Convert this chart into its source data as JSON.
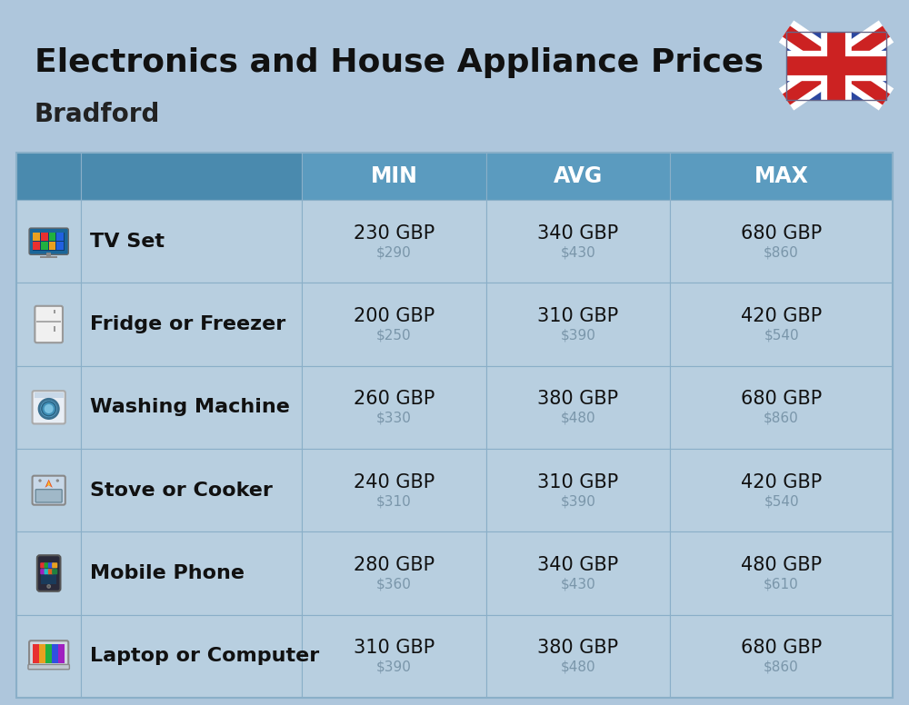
{
  "title": "Electronics and House Appliance Prices",
  "subtitle": "Bradford",
  "bg_color": "#aec6dc",
  "header_color": "#5b9bbf",
  "header_dark_color": "#4a8aae",
  "header_text_color": "#ffffff",
  "row_color": "#b8cfe0",
  "row_color_alt": "#bed4e4",
  "border_color": "#8aafc8",
  "columns": [
    "",
    "",
    "MIN",
    "AVG",
    "MAX"
  ],
  "rows": [
    {
      "name": "TV Set",
      "min_gbp": "230 GBP",
      "min_usd": "$290",
      "avg_gbp": "340 GBP",
      "avg_usd": "$430",
      "max_gbp": "680 GBP",
      "max_usd": "$860"
    },
    {
      "name": "Fridge or Freezer",
      "min_gbp": "200 GBP",
      "min_usd": "$250",
      "avg_gbp": "310 GBP",
      "avg_usd": "$390",
      "max_gbp": "420 GBP",
      "max_usd": "$540"
    },
    {
      "name": "Washing Machine",
      "min_gbp": "260 GBP",
      "min_usd": "$330",
      "avg_gbp": "380 GBP",
      "avg_usd": "$480",
      "max_gbp": "680 GBP",
      "max_usd": "$860"
    },
    {
      "name": "Stove or Cooker",
      "min_gbp": "240 GBP",
      "min_usd": "$310",
      "avg_gbp": "310 GBP",
      "avg_usd": "$390",
      "max_gbp": "420 GBP",
      "max_usd": "$540"
    },
    {
      "name": "Mobile Phone",
      "min_gbp": "280 GBP",
      "min_usd": "$360",
      "avg_gbp": "340 GBP",
      "avg_usd": "$430",
      "max_gbp": "480 GBP",
      "max_usd": "$610"
    },
    {
      "name": "Laptop or Computer",
      "min_gbp": "310 GBP",
      "min_usd": "$390",
      "avg_gbp": "380 GBP",
      "avg_usd": "$480",
      "max_gbp": "680 GBP",
      "max_usd": "$860"
    }
  ],
  "gbp_fontsize": 15,
  "usd_fontsize": 11,
  "usd_color": "#7a96aa",
  "name_fontsize": 16,
  "header_fontsize": 17,
  "title_fontsize": 26,
  "subtitle_fontsize": 20
}
